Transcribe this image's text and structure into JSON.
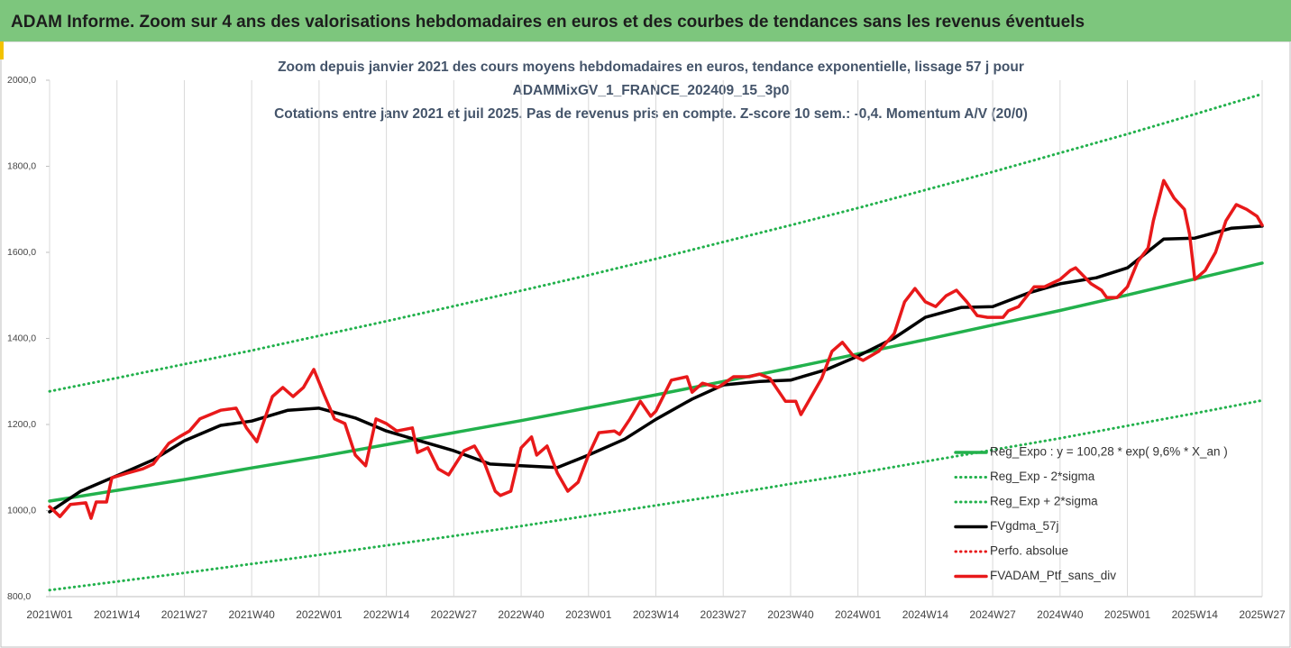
{
  "header": "ADAM Informe. Zoom sur 4 ans des valorisations hebdomadaires en euros et des courbes de tendances sans les revenus éventuels",
  "chart_data": {
    "type": "line",
    "title_lines": [
      "Zoom depuis janvier 2021 des cours moyens hebdomadaires  en euros, tendance exponentielle, lissage 57 j pour",
      "ADAMMixGV_1_FRANCE_202409_15_3p0",
      "Cotations entre janv 2021 et juil 2025. Pas de revenus pris en compte. Z-score 10 sem.: -0,4. Momentum A/V (20/0)"
    ],
    "xlim": [
      0,
      234
    ],
    "xticks": [
      {
        "value": 0,
        "label": "2021W01"
      },
      {
        "value": 13,
        "label": "2021W14"
      },
      {
        "value": 26,
        "label": "2021W27"
      },
      {
        "value": 39,
        "label": "2021W40"
      },
      {
        "value": 52,
        "label": "2022W01"
      },
      {
        "value": 65,
        "label": "2022W14"
      },
      {
        "value": 78,
        "label": "2022W27"
      },
      {
        "value": 91,
        "label": "2022W40"
      },
      {
        "value": 104,
        "label": "2023W01"
      },
      {
        "value": 117,
        "label": "2023W14"
      },
      {
        "value": 130,
        "label": "2023W27"
      },
      {
        "value": 143,
        "label": "2023W40"
      },
      {
        "value": 156,
        "label": "2024W01"
      },
      {
        "value": 169,
        "label": "2024W14"
      },
      {
        "value": 182,
        "label": "2024W27"
      },
      {
        "value": 195,
        "label": "2024W40"
      },
      {
        "value": 208,
        "label": "2025W01"
      },
      {
        "value": 221,
        "label": "2025W14"
      },
      {
        "value": 234,
        "label": "2025W27"
      }
    ],
    "ylim": [
      800,
      2000
    ],
    "yticks": [
      {
        "value": 800,
        "label": "800,0"
      },
      {
        "value": 1000,
        "label": "1000,0"
      },
      {
        "value": 1200,
        "label": "1200,0"
      },
      {
        "value": 1400,
        "label": "1400,0"
      },
      {
        "value": 1600,
        "label": "1600,0"
      },
      {
        "value": 1800,
        "label": "1800,0"
      },
      {
        "value": 2000,
        "label": "2000,0"
      }
    ],
    "grid": "x",
    "legend": "right",
    "series": [
      {
        "name": "Reg_Expo : y = 100,28 * exp( 9,6% *  X_an )",
        "color": "#22b14c",
        "dash": "solid",
        "x": [
          0,
          13,
          26,
          39,
          52,
          65,
          78,
          91,
          104,
          117,
          130,
          143,
          156,
          169,
          182,
          195,
          208,
          221,
          234
        ],
        "values": [
          1022,
          1047,
          1072,
          1099,
          1125,
          1153,
          1181,
          1209,
          1239,
          1269,
          1300,
          1331,
          1364,
          1397,
          1431,
          1465,
          1501,
          1538,
          1575
        ]
      },
      {
        "name": "Reg_Exp - 2*sigma",
        "color": "#22b14c",
        "dash": "dotted",
        "x": [
          0,
          13,
          26,
          39,
          52,
          65,
          78,
          91,
          104,
          117,
          130,
          143,
          156,
          169,
          182,
          195,
          208,
          221,
          234
        ],
        "values": [
          815,
          835,
          855,
          876,
          897,
          919,
          941,
          964,
          988,
          1012,
          1036,
          1062,
          1087,
          1114,
          1141,
          1168,
          1197,
          1226,
          1256
        ]
      },
      {
        "name": "Reg_Exp + 2*sigma",
        "color": "#22b14c",
        "dash": "dotted",
        "x": [
          0,
          13,
          26,
          39,
          52,
          65,
          78,
          91,
          104,
          117,
          130,
          143,
          156,
          169,
          182,
          195,
          208,
          221,
          234
        ],
        "values": [
          1277,
          1308,
          1340,
          1372,
          1406,
          1440,
          1475,
          1511,
          1547,
          1585,
          1624,
          1663,
          1703,
          1745,
          1787,
          1831,
          1875,
          1921,
          1968
        ]
      },
      {
        "name": "FVgdma_57j",
        "color": "#000000",
        "dash": "solid",
        "x": [
          0,
          6,
          13,
          20,
          26,
          33,
          39,
          46,
          52,
          59,
          65,
          72,
          78,
          85,
          91,
          98,
          104,
          111,
          117,
          124,
          130,
          137,
          143,
          150,
          156,
          163,
          169,
          176,
          182,
          189,
          195,
          202,
          208,
          215,
          221,
          228,
          234
        ],
        "values": [
          997,
          1045,
          1081,
          1118,
          1162,
          1198,
          1208,
          1233,
          1238,
          1215,
          1185,
          1160,
          1139,
          1108,
          1104,
          1100,
          1129,
          1166,
          1212,
          1259,
          1292,
          1300,
          1303,
          1328,
          1359,
          1401,
          1449,
          1472,
          1474,
          1506,
          1527,
          1541,
          1564,
          1631,
          1633,
          1656,
          1661
        ]
      },
      {
        "name": "Perfo. absolue",
        "color": "#e8191a",
        "dash": "dotted",
        "x": [],
        "values": []
      },
      {
        "name": "FVADAM_Ptf_sans_div",
        "color": "#e8191a",
        "dash": "solid",
        "x": [
          0,
          2,
          4,
          7,
          8,
          9,
          11,
          12,
          15,
          18,
          20,
          23,
          25,
          27,
          29,
          33,
          36,
          38,
          40,
          43,
          45,
          47,
          49,
          51,
          53,
          55,
          57,
          59,
          61,
          63,
          65,
          67,
          70,
          71,
          73,
          75,
          77,
          80,
          82,
          84,
          86,
          87,
          89,
          91,
          93,
          94,
          96,
          98,
          100,
          102,
          104,
          106,
          109,
          110,
          112,
          114,
          116,
          117,
          120,
          123,
          124,
          126,
          129,
          132,
          135,
          137,
          139,
          142,
          144,
          145,
          147,
          149,
          151,
          153,
          155,
          157,
          160,
          163,
          165,
          167,
          169,
          171,
          173,
          175,
          177,
          179,
          181,
          184,
          185,
          187,
          190,
          192,
          195,
          197,
          198,
          201,
          203,
          204,
          206,
          208,
          210,
          212,
          213,
          215,
          217,
          219,
          220,
          221,
          223,
          225,
          227,
          229,
          231,
          233,
          234
        ],
        "values": [
          1009,
          986,
          1014,
          1018,
          982,
          1020,
          1020,
          1076,
          1087,
          1097,
          1108,
          1156,
          1171,
          1185,
          1213,
          1233,
          1238,
          1192,
          1160,
          1265,
          1286,
          1265,
          1286,
          1328,
          1269,
          1213,
          1202,
          1129,
          1104,
          1213,
          1202,
          1185,
          1192,
          1135,
          1146,
          1097,
          1083,
          1139,
          1150,
          1108,
          1045,
          1035,
          1045,
          1146,
          1171,
          1129,
          1150,
          1087,
          1045,
          1066,
          1129,
          1181,
          1185,
          1177,
          1213,
          1254,
          1219,
          1231,
          1303,
          1311,
          1275,
          1296,
          1286,
          1311,
          1311,
          1317,
          1307,
          1254,
          1254,
          1223,
          1265,
          1307,
          1370,
          1391,
          1361,
          1349,
          1370,
          1411,
          1485,
          1516,
          1485,
          1474,
          1499,
          1512,
          1485,
          1453,
          1449,
          1449,
          1464,
          1474,
          1520,
          1520,
          1537,
          1558,
          1564,
          1527,
          1512,
          1495,
          1495,
          1520,
          1579,
          1610,
          1673,
          1767,
          1726,
          1700,
          1642,
          1537,
          1558,
          1600,
          1673,
          1711,
          1700,
          1684,
          1663
        ]
      }
    ]
  }
}
